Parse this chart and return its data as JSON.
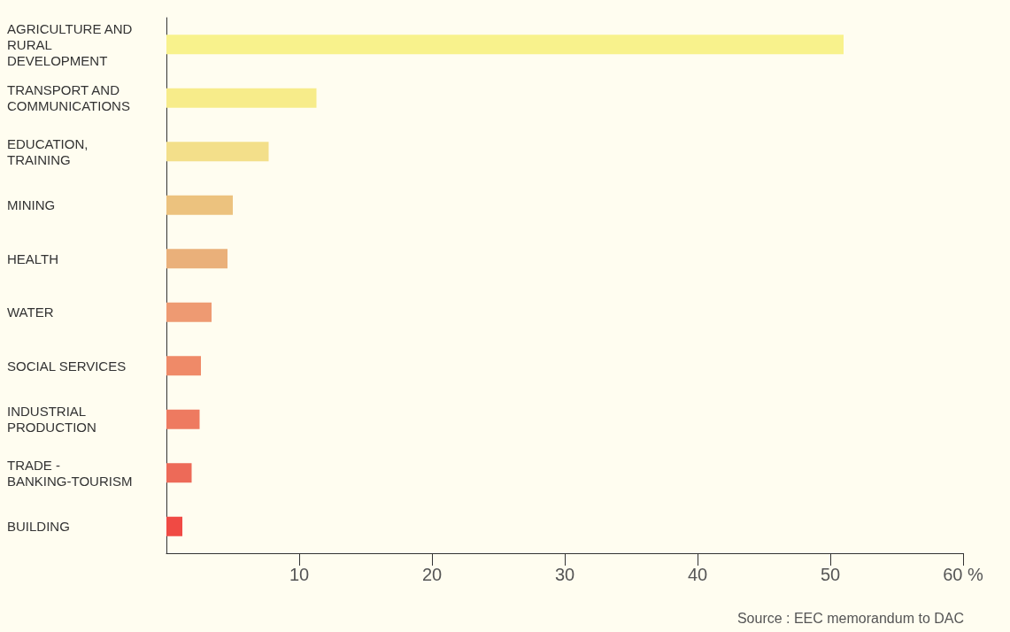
{
  "chart_data": {
    "type": "bar",
    "orientation": "horizontal",
    "categories": [
      "AGRICULTURE AND RURAL DEVELOPMENT",
      "TRANSPORT AND COMMUNICATIONS",
      "EDUCATION, TRAINING",
      "MINING",
      "HEALTH",
      "WATER",
      "SOCIAL SERVICES",
      "INDUSTRIAL PRODUCTION",
      "TRADE - BANKING-TOURISM",
      "BUILDING"
    ],
    "values": [
      51,
      11.3,
      7.7,
      5,
      4.6,
      3.4,
      2.6,
      2.5,
      1.9,
      1.2
    ],
    "colors": [
      "#f8f28c",
      "#f7ec8a",
      "#f3df8a",
      "#ecc27e",
      "#eab07a",
      "#ee9a72",
      "#ef8a68",
      "#ee7a60",
      "#ed6a58",
      "#f04a44"
    ],
    "xlim": [
      0,
      60
    ],
    "xticks": [
      10,
      20,
      30,
      40,
      50,
      {
        "value": 60,
        "label": "60 %"
      }
    ],
    "grid": false,
    "annotations": [
      "Source : EEC memorandum to DAC"
    ]
  }
}
